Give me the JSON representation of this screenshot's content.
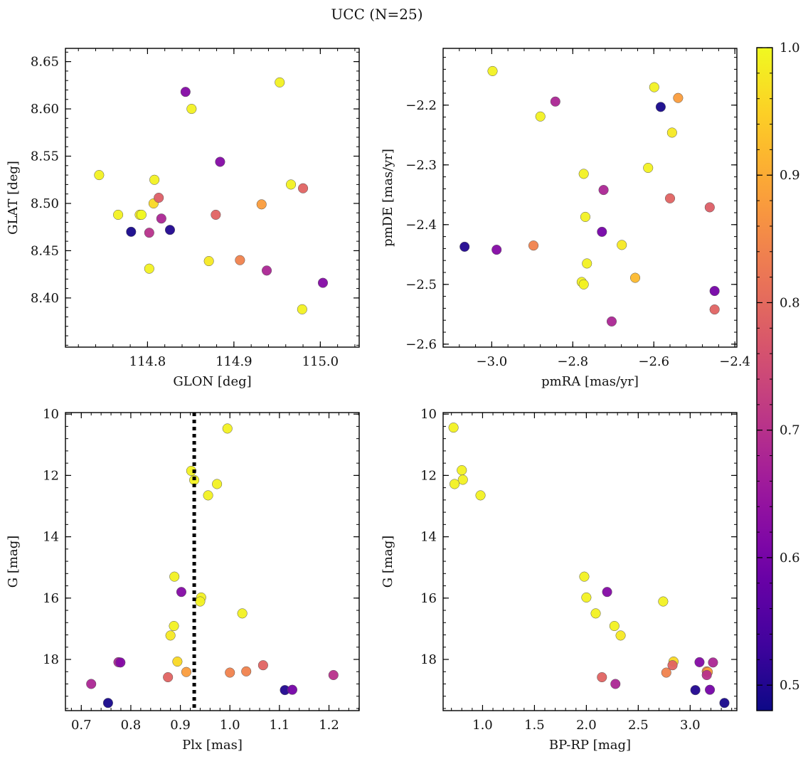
{
  "title": "UCC (N=25)",
  "colorbar": {
    "min": 0.48,
    "max": 1.0,
    "ticks": [
      "0.5",
      "0.6",
      "0.7",
      "0.8",
      "0.9",
      "1.0"
    ],
    "tick_values": [
      0.5,
      0.6,
      0.7,
      0.8,
      0.9,
      1.0
    ],
    "colormap": "plasma",
    "colormap_stops": [
      "#0d0887",
      "#46039f",
      "#7201a8",
      "#9c179e",
      "#bd3786",
      "#d8576b",
      "#ed7953",
      "#fb9f3a",
      "#fdca26",
      "#f0f921"
    ]
  },
  "chart_data": [
    {
      "type": "scatter",
      "name": "sky",
      "xlabel": "GLON [deg]",
      "ylabel": "GLAT [deg]",
      "xlim": [
        114.705,
        115.045
      ],
      "ylim": [
        8.348,
        8.664
      ],
      "invert_y": false,
      "xticks": [
        114.8,
        114.9,
        115.0
      ],
      "xtick_labels": [
        "114.8",
        "114.9",
        "115.0"
      ],
      "yticks": [
        8.4,
        8.45,
        8.5,
        8.55,
        8.6,
        8.65
      ],
      "ytick_labels": [
        "8.40",
        "8.45",
        "8.50",
        "8.55",
        "8.60",
        "8.65"
      ],
      "points": [
        {
          "x": 114.744,
          "y": 8.53,
          "c": 0.99
        },
        {
          "x": 114.766,
          "y": 8.488,
          "c": 0.99
        },
        {
          "x": 114.781,
          "y": 8.47,
          "c": 0.49
        },
        {
          "x": 114.791,
          "y": 8.488,
          "c": 0.98
        },
        {
          "x": 114.793,
          "y": 8.488,
          "c": 1.0
        },
        {
          "x": 114.802,
          "y": 8.469,
          "c": 0.7
        },
        {
          "x": 114.802,
          "y": 8.431,
          "c": 0.99
        },
        {
          "x": 114.807,
          "y": 8.5,
          "c": 0.96
        },
        {
          "x": 114.808,
          "y": 8.525,
          "c": 0.99
        },
        {
          "x": 114.813,
          "y": 8.506,
          "c": 0.78
        },
        {
          "x": 114.816,
          "y": 8.484,
          "c": 0.68
        },
        {
          "x": 114.826,
          "y": 8.472,
          "c": 0.5
        },
        {
          "x": 114.844,
          "y": 8.618,
          "c": 0.62
        },
        {
          "x": 114.851,
          "y": 8.6,
          "c": 0.99
        },
        {
          "x": 114.871,
          "y": 8.439,
          "c": 0.98
        },
        {
          "x": 114.879,
          "y": 8.488,
          "c": 0.79
        },
        {
          "x": 114.884,
          "y": 8.544,
          "c": 0.62
        },
        {
          "x": 114.907,
          "y": 8.44,
          "c": 0.84
        },
        {
          "x": 114.932,
          "y": 8.499,
          "c": 0.88
        },
        {
          "x": 114.938,
          "y": 8.429,
          "c": 0.68
        },
        {
          "x": 114.953,
          "y": 8.628,
          "c": 0.99
        },
        {
          "x": 114.966,
          "y": 8.52,
          "c": 0.99
        },
        {
          "x": 114.979,
          "y": 8.388,
          "c": 0.99
        },
        {
          "x": 114.98,
          "y": 8.516,
          "c": 0.79
        },
        {
          "x": 115.003,
          "y": 8.416,
          "c": 0.62
        }
      ]
    },
    {
      "type": "scatter",
      "name": "proper-motion",
      "xlabel": "pmRA [mas/yr]",
      "ylabel": "pmDE [mas/yr]",
      "xlim": [
        -3.12,
        -2.395
      ],
      "ylim": [
        -2.605,
        -2.105
      ],
      "invert_y": false,
      "xticks": [
        -3.0,
        -2.8,
        -2.6,
        -2.4
      ],
      "xtick_labels": [
        "−3.0",
        "−2.8",
        "−2.6",
        "−2.4"
      ],
      "yticks": [
        -2.6,
        -2.5,
        -2.4,
        -2.3,
        -2.2
      ],
      "ytick_labels": [
        "−2.6",
        "−2.5",
        "−2.4",
        "−2.3",
        "−2.2"
      ],
      "points": [
        {
          "x": -2.998,
          "y": -2.143,
          "c": 0.99
        },
        {
          "x": -2.843,
          "y": -2.194,
          "c": 0.68
        },
        {
          "x": -2.88,
          "y": -2.219,
          "c": 0.99
        },
        {
          "x": -2.599,
          "y": -2.17,
          "c": 0.99
        },
        {
          "x": -2.583,
          "y": -2.203,
          "c": 0.49
        },
        {
          "x": -2.54,
          "y": -2.188,
          "c": 0.88
        },
        {
          "x": -2.555,
          "y": -2.246,
          "c": 0.98
        },
        {
          "x": -2.773,
          "y": -2.315,
          "c": 0.99
        },
        {
          "x": -2.614,
          "y": -2.305,
          "c": 0.99
        },
        {
          "x": -2.724,
          "y": -2.342,
          "c": 0.68
        },
        {
          "x": -2.56,
          "y": -2.356,
          "c": 0.79
        },
        {
          "x": -2.462,
          "y": -2.371,
          "c": 0.78
        },
        {
          "x": -2.769,
          "y": -2.387,
          "c": 0.99
        },
        {
          "x": -2.728,
          "y": -2.412,
          "c": 0.6
        },
        {
          "x": -3.067,
          "y": -2.437,
          "c": 0.5
        },
        {
          "x": -2.988,
          "y": -2.442,
          "c": 0.62
        },
        {
          "x": -2.897,
          "y": -2.435,
          "c": 0.84
        },
        {
          "x": -2.679,
          "y": -2.434,
          "c": 0.98
        },
        {
          "x": -2.765,
          "y": -2.465,
          "c": 0.99
        },
        {
          "x": -2.646,
          "y": -2.489,
          "c": 0.92
        },
        {
          "x": -2.778,
          "y": -2.496,
          "c": 0.99
        },
        {
          "x": -2.773,
          "y": -2.5,
          "c": 0.99
        },
        {
          "x": -2.45,
          "y": -2.511,
          "c": 0.6
        },
        {
          "x": -2.45,
          "y": -2.542,
          "c": 0.79
        },
        {
          "x": -2.704,
          "y": -2.562,
          "c": 0.68
        }
      ]
    },
    {
      "type": "scatter",
      "name": "plx-vs-g",
      "xlabel": "Plx [mas]",
      "ylabel": "G [mag]",
      "xlim": [
        0.668,
        1.261
      ],
      "ylim": [
        9.95,
        19.67
      ],
      "invert_y": true,
      "vline": 0.928,
      "xticks": [
        0.7,
        0.8,
        0.9,
        1.0,
        1.1,
        1.2
      ],
      "xtick_labels": [
        "0.7",
        "0.8",
        "0.9",
        "1.0",
        "1.1",
        "1.2"
      ],
      "yticks": [
        10,
        12,
        14,
        16,
        18
      ],
      "ytick_labels": [
        "10",
        "12",
        "14",
        "16",
        "18"
      ],
      "points": [
        {
          "x": 0.995,
          "y": 10.47,
          "c": 0.99
        },
        {
          "x": 0.922,
          "y": 11.85,
          "c": 0.99
        },
        {
          "x": 0.928,
          "y": 12.15,
          "c": 0.99
        },
        {
          "x": 0.974,
          "y": 12.28,
          "c": 0.99
        },
        {
          "x": 0.956,
          "y": 12.65,
          "c": 0.99
        },
        {
          "x": 0.888,
          "y": 15.3,
          "c": 0.99
        },
        {
          "x": 0.902,
          "y": 15.8,
          "c": 0.62
        },
        {
          "x": 0.942,
          "y": 15.98,
          "c": 0.99
        },
        {
          "x": 0.94,
          "y": 16.11,
          "c": 0.99
        },
        {
          "x": 1.025,
          "y": 16.5,
          "c": 0.99
        },
        {
          "x": 0.887,
          "y": 16.91,
          "c": 0.99
        },
        {
          "x": 0.88,
          "y": 17.22,
          "c": 0.98
        },
        {
          "x": 0.775,
          "y": 18.09,
          "c": 0.68
        },
        {
          "x": 0.779,
          "y": 18.1,
          "c": 0.62
        },
        {
          "x": 0.894,
          "y": 18.07,
          "c": 0.96
        },
        {
          "x": 0.912,
          "y": 18.41,
          "c": 0.88
        },
        {
          "x": 1.0,
          "y": 18.43,
          "c": 0.84
        },
        {
          "x": 1.033,
          "y": 18.39,
          "c": 0.84
        },
        {
          "x": 1.067,
          "y": 18.19,
          "c": 0.79
        },
        {
          "x": 0.875,
          "y": 18.58,
          "c": 0.79
        },
        {
          "x": 1.209,
          "y": 18.51,
          "c": 0.7
        },
        {
          "x": 0.72,
          "y": 18.8,
          "c": 0.68
        },
        {
          "x": 1.111,
          "y": 19.0,
          "c": 0.5
        },
        {
          "x": 1.126,
          "y": 18.99,
          "c": 0.6
        },
        {
          "x": 0.754,
          "y": 19.42,
          "c": 0.49
        }
      ]
    },
    {
      "type": "scatter",
      "name": "cmd",
      "xlabel": "BP-RP [mag]",
      "ylabel": "G [mag]",
      "xlim": [
        0.62,
        3.45
      ],
      "ylim": [
        9.95,
        19.67
      ],
      "invert_y": true,
      "xticks": [
        1.0,
        1.5,
        2.0,
        2.5,
        3.0
      ],
      "xtick_labels": [
        "1.0",
        "1.5",
        "2.0",
        "2.5",
        "3.0"
      ],
      "yticks": [
        10,
        12,
        14,
        16,
        18
      ],
      "ytick_labels": [
        "10",
        "12",
        "14",
        "16",
        "18"
      ],
      "points": [
        {
          "x": 0.72,
          "y": 10.44,
          "c": 0.99
        },
        {
          "x": 0.8,
          "y": 11.83,
          "c": 0.99
        },
        {
          "x": 0.81,
          "y": 12.14,
          "c": 0.99
        },
        {
          "x": 0.73,
          "y": 12.28,
          "c": 0.99
        },
        {
          "x": 0.98,
          "y": 12.65,
          "c": 0.99
        },
        {
          "x": 1.98,
          "y": 15.3,
          "c": 0.99
        },
        {
          "x": 2.2,
          "y": 15.8,
          "c": 0.62
        },
        {
          "x": 2.0,
          "y": 15.98,
          "c": 0.99
        },
        {
          "x": 2.74,
          "y": 16.11,
          "c": 0.99
        },
        {
          "x": 2.09,
          "y": 16.5,
          "c": 0.99
        },
        {
          "x": 2.27,
          "y": 16.91,
          "c": 0.99
        },
        {
          "x": 2.33,
          "y": 17.22,
          "c": 0.98
        },
        {
          "x": 2.84,
          "y": 18.07,
          "c": 0.96
        },
        {
          "x": 2.83,
          "y": 18.19,
          "c": 0.79
        },
        {
          "x": 3.09,
          "y": 18.09,
          "c": 0.62
        },
        {
          "x": 3.22,
          "y": 18.1,
          "c": 0.68
        },
        {
          "x": 3.16,
          "y": 18.39,
          "c": 0.84
        },
        {
          "x": 3.17,
          "y": 18.41,
          "c": 0.88
        },
        {
          "x": 2.77,
          "y": 18.43,
          "c": 0.84
        },
        {
          "x": 3.16,
          "y": 18.51,
          "c": 0.7
        },
        {
          "x": 2.15,
          "y": 18.58,
          "c": 0.79
        },
        {
          "x": 2.28,
          "y": 18.8,
          "c": 0.68
        },
        {
          "x": 3.05,
          "y": 19.0,
          "c": 0.5
        },
        {
          "x": 3.19,
          "y": 18.99,
          "c": 0.6
        },
        {
          "x": 3.33,
          "y": 19.42,
          "c": 0.49
        }
      ]
    }
  ]
}
